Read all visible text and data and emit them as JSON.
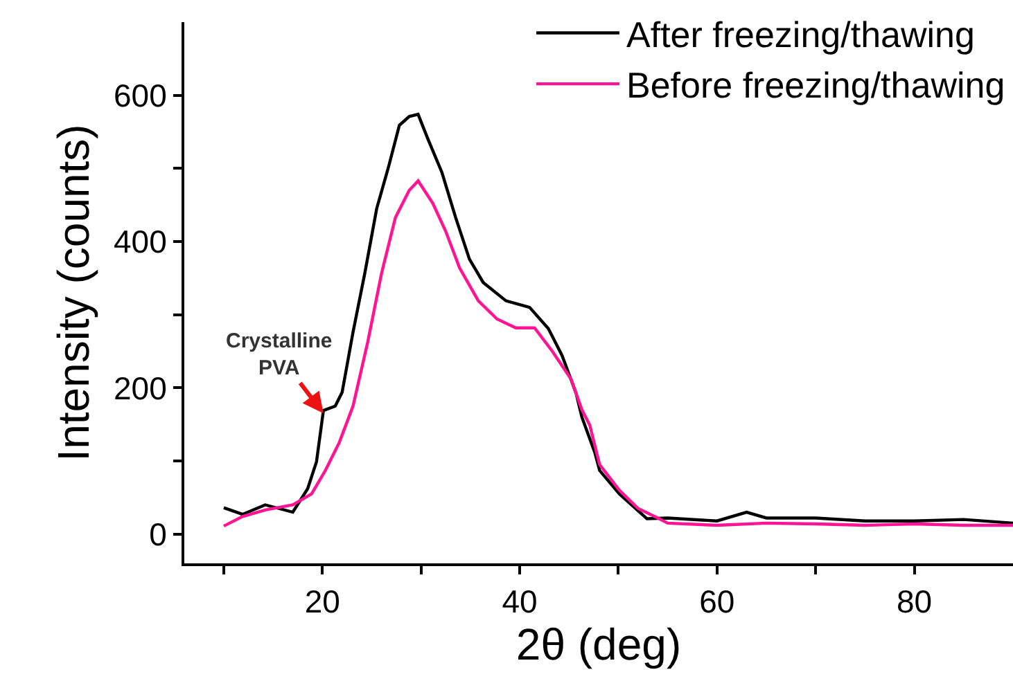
{
  "chart_data": {
    "type": "line",
    "xlabel": "2θ (deg)",
    "ylabel": "Intensity (counts)",
    "xlim": [
      6,
      90
    ],
    "xticks": [
      {
        "value": 10,
        "label": null
      },
      20,
      {
        "value": 30,
        "label": null
      },
      40,
      {
        "value": 50,
        "label": null
      },
      60,
      {
        "value": 70,
        "label": null
      },
      80
    ],
    "ylim": [
      -40,
      700
    ],
    "yticks": [
      0,
      {
        "value": 100,
        "label": null
      },
      200,
      {
        "value": 300,
        "label": null
      },
      400,
      {
        "value": 500,
        "label": null
      },
      600
    ],
    "grid": false,
    "legend": "top right",
    "marker": "none",
    "line_style": "solid",
    "annotations": [
      {
        "text": "Crystalline\nPVA",
        "x": 20.1,
        "y": 165
      }
    ],
    "series": [
      {
        "name": "After freezing/thawing",
        "color": "#000000",
        "x": [
          10,
          11.9,
          14.2,
          17,
          18.5,
          19.4,
          20.1,
          21.3,
          22,
          23.1,
          24.3,
          25.5,
          26.7,
          27.8,
          28.8,
          29.7,
          30.7,
          32.1,
          33.5,
          34.9,
          36.3,
          38.6,
          41,
          42.9,
          44.3,
          45.7,
          46.3,
          47.6,
          48.1,
          50.1,
          52.9,
          55,
          60,
          63,
          65,
          70,
          75,
          80,
          85,
          90
        ],
        "values": [
          36,
          27,
          40,
          30,
          62,
          99,
          169,
          175,
          194,
          276,
          357,
          445,
          502,
          559,
          571,
          574,
          540,
          495,
          433,
          376,
          344,
          319,
          310,
          281,
          244,
          193,
          160,
          112,
          87,
          55,
          21,
          22,
          18,
          30,
          22,
          22,
          18,
          18,
          20,
          15
        ]
      },
      {
        "name": "Before freezing/thawing",
        "color": "#ff1493",
        "x": [
          10,
          11.9,
          14.2,
          17,
          18.9,
          20.3,
          21.7,
          23.1,
          24.6,
          26,
          27.4,
          28.8,
          29.7,
          31.2,
          32.5,
          33.9,
          35.8,
          37.7,
          39.6,
          41.5,
          43.3,
          45.2,
          46.3,
          47.1,
          48.1,
          50.1,
          52,
          54,
          55,
          60,
          65,
          70,
          75,
          80,
          85,
          90
        ],
        "values": [
          11,
          24,
          33,
          40,
          55,
          87,
          125,
          175,
          263,
          357,
          433,
          470,
          483,
          452,
          414,
          364,
          319,
          294,
          282,
          282,
          250,
          212,
          170,
          149,
          95,
          60,
          35,
          22,
          15,
          12,
          15,
          14,
          12,
          14,
          12,
          12
        ]
      }
    ]
  }
}
